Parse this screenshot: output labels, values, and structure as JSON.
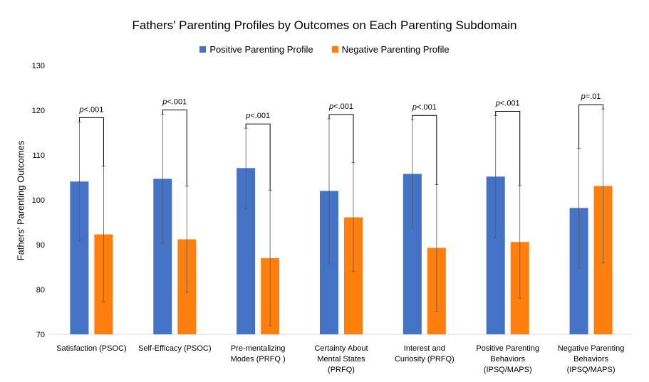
{
  "chart_data": {
    "type": "bar",
    "title": "Fathers' Parenting Profiles by Outcomes on Each Parenting Subdomain",
    "xlabel": "",
    "ylabel": "Fathers' Parenting Outcomes",
    "ylim": [
      70,
      130
    ],
    "yticks": [
      70,
      80,
      90,
      100,
      110,
      120,
      130
    ],
    "grid": false,
    "legend_position": "top",
    "categories": [
      [
        "Satisfaction (PSOC)"
      ],
      [
        "Self-Efficacy (PSOC)"
      ],
      [
        "Pre-mentalizing",
        "Modes (PRFQ )"
      ],
      [
        "Certainty About",
        "Mental States",
        "(PRFQ)"
      ],
      [
        "Interest and",
        "Curiosity (PRFQ)"
      ],
      [
        "Positive Parenting",
        "Behaviors",
        "(IPSQ/MAPS)"
      ],
      [
        "Negative Parenting",
        "Behaviors",
        "(IPSQ/MAPS)"
      ]
    ],
    "series": [
      {
        "name": "Positive Parenting Profile",
        "color": "#4472C4",
        "values": [
          104.1,
          104.7,
          107.1,
          102.0,
          105.8,
          105.2,
          98.2
        ],
        "error_low": [
          90.8,
          90.3,
          98.0,
          85.9,
          93.7,
          91.5,
          84.8
        ],
        "error_high": [
          117.4,
          119.1,
          116.0,
          118.1,
          117.9,
          118.8,
          111.5
        ]
      },
      {
        "name": "Negative Parenting Profile",
        "color": "#FF7F0E",
        "values": [
          92.3,
          91.2,
          87.0,
          96.1,
          89.3,
          90.6,
          103.1
        ],
        "error_low": [
          77.3,
          79.4,
          71.9,
          84.0,
          75.2,
          78.1,
          86.0
        ],
        "error_high": [
          107.5,
          103.1,
          102.1,
          108.3,
          103.4,
          103.2,
          120.3
        ]
      }
    ],
    "annotations": [
      "p<.001",
      "p<.001",
      "p<.001",
      "p<.001",
      "p<.001",
      "p<.001",
      "p=.01"
    ]
  }
}
